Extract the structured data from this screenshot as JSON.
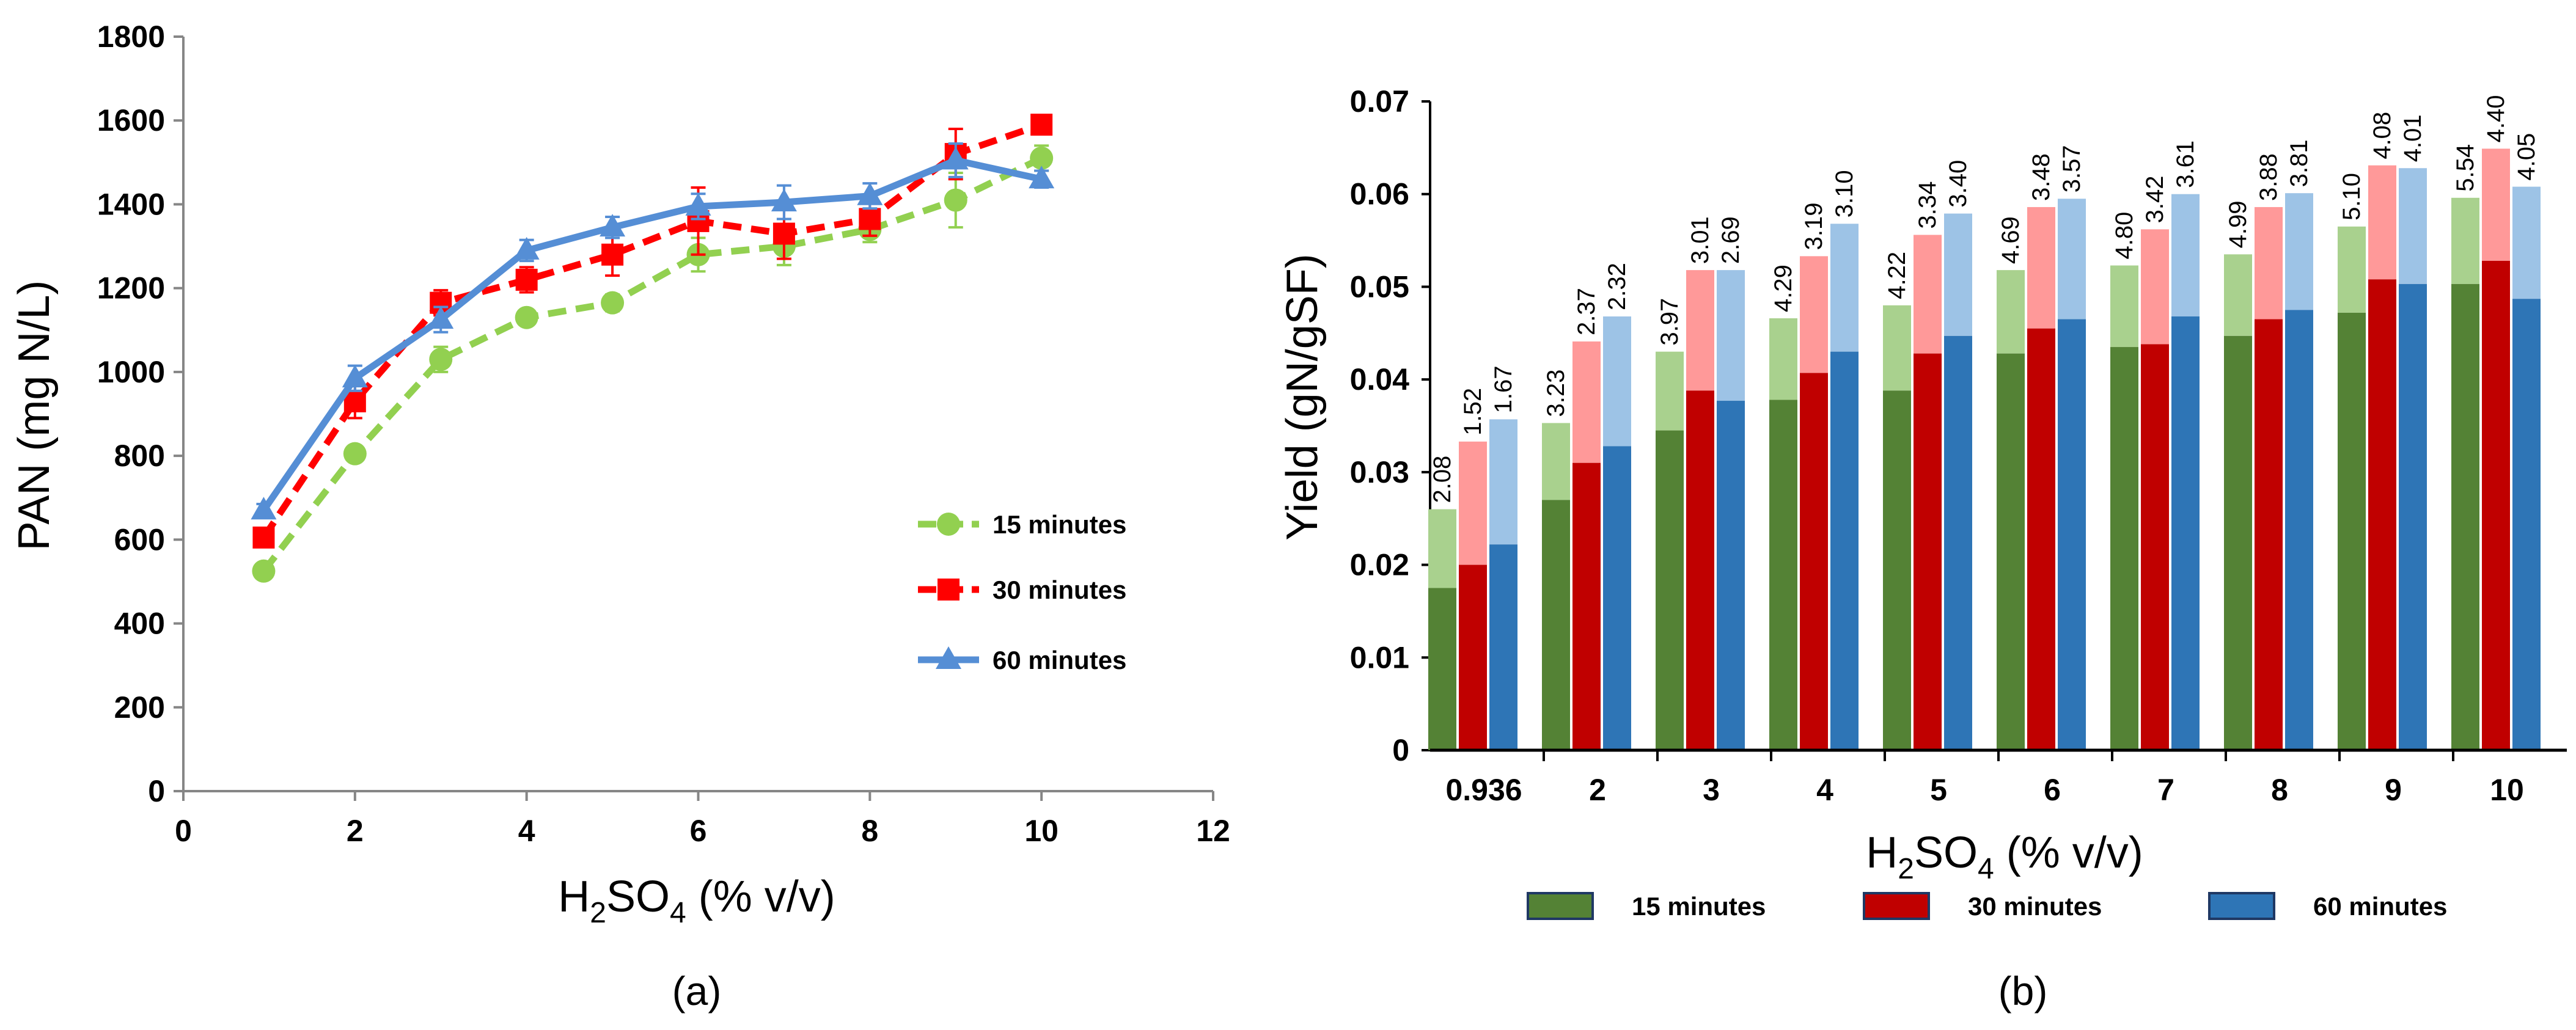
{
  "chart_data": [
    {
      "type": "line",
      "panel": "(a)",
      "xlabel_parts": [
        "H",
        "2",
        "SO",
        "4",
        " (% v/v)"
      ],
      "ylabel": "PAN (mg N/L)",
      "xlim": [
        0,
        12
      ],
      "ylim": [
        0,
        1800
      ],
      "xticks": [
        "0",
        "2",
        "4",
        "6",
        "8",
        "10",
        "12"
      ],
      "yticks": [
        "0",
        "200",
        "400",
        "600",
        "800",
        "1000",
        "1200",
        "1400",
        "1600",
        "1800"
      ],
      "x": [
        0.936,
        2,
        3,
        4,
        5,
        6,
        7,
        8,
        9,
        10
      ],
      "series": [
        {
          "name": "15 minutes",
          "color": "#92d050",
          "marker": "circle",
          "dash": "dashed",
          "values": [
            525,
            805,
            1030,
            1130,
            1165,
            1280,
            1300,
            1340,
            1410,
            1510
          ],
          "errors": [
            12,
            15,
            30,
            12,
            20,
            40,
            45,
            30,
            65,
            30
          ]
        },
        {
          "name": "30 minutes",
          "color": "#ff0000",
          "marker": "square",
          "dash": "dashed",
          "values": [
            605,
            930,
            1165,
            1220,
            1280,
            1360,
            1330,
            1365,
            1520,
            1590
          ],
          "errors": [
            15,
            40,
            30,
            30,
            50,
            80,
            60,
            40,
            60,
            15
          ]
        },
        {
          "name": "60 minutes",
          "color": "#558ed5",
          "marker": "triangle",
          "dash": "solid",
          "values": [
            670,
            985,
            1125,
            1290,
            1345,
            1395,
            1405,
            1420,
            1505,
            1460
          ],
          "errors": [
            15,
            30,
            30,
            25,
            25,
            30,
            40,
            30,
            40,
            20
          ]
        }
      ],
      "legend_position": "lower-right",
      "caption": "(a)"
    },
    {
      "type": "bar",
      "stacked": true,
      "panel": "(b)",
      "xlabel_parts": [
        "H",
        "2",
        "SO",
        "4",
        " (% v/v)"
      ],
      "ylabel": "Yield (gN/gSF)",
      "ylim": [
        0,
        0.07
      ],
      "yticks": [
        "0",
        "0.01",
        "0.02",
        "0.03",
        "0.04",
        "0.05",
        "0.06",
        "0.07"
      ],
      "categories": [
        "0.936",
        "2",
        "3",
        "4",
        "5",
        "6",
        "7",
        "8",
        "9",
        "10"
      ],
      "series": [
        {
          "name": "15 minutes",
          "color_dark": "#548235",
          "color_light": "#a9d18e",
          "base": [
            0.0175,
            0.027,
            0.0345,
            0.0378,
            0.0388,
            0.0428,
            0.0435,
            0.0447,
            0.0472,
            0.0503
          ],
          "total": [
            0.026,
            0.0353,
            0.043,
            0.0466,
            0.048,
            0.0518,
            0.0523,
            0.0535,
            0.0565,
            0.0596
          ],
          "labels": [
            "2.08",
            "3.23",
            "3.97",
            "4.29",
            "4.22",
            "4.69",
            "4.80",
            "4.99",
            "5.10",
            "5.54"
          ]
        },
        {
          "name": "30 minutes",
          "color_dark": "#c00000",
          "color_light": "#ff9999",
          "base": [
            0.02,
            0.031,
            0.0388,
            0.0407,
            0.0428,
            0.0455,
            0.0438,
            0.0465,
            0.0508,
            0.0528
          ],
          "total": [
            0.0333,
            0.0441,
            0.0518,
            0.0533,
            0.0556,
            0.0586,
            0.0562,
            0.0586,
            0.0631,
            0.0649
          ],
          "labels": [
            "1.52",
            "2.37",
            "3.01",
            "3.19",
            "3.34",
            "3.48",
            "3.42",
            "3.88",
            "4.08",
            "4.40"
          ]
        },
        {
          "name": "60 minutes",
          "color_dark": "#2e75b6",
          "color_light": "#9dc3e6",
          "base": [
            0.0222,
            0.0328,
            0.0377,
            0.043,
            0.0447,
            0.0465,
            0.0468,
            0.0475,
            0.0503,
            0.0487
          ],
          "total": [
            0.0357,
            0.0468,
            0.0518,
            0.0568,
            0.0579,
            0.0595,
            0.06,
            0.0601,
            0.0628,
            0.0608
          ],
          "labels": [
            "1.67",
            "2.32",
            "2.69",
            "3.10",
            "3.40",
            "3.57",
            "3.61",
            "3.81",
            "4.01",
            "4.05"
          ]
        }
      ],
      "legend_position": "bottom",
      "caption": "(b)"
    }
  ]
}
